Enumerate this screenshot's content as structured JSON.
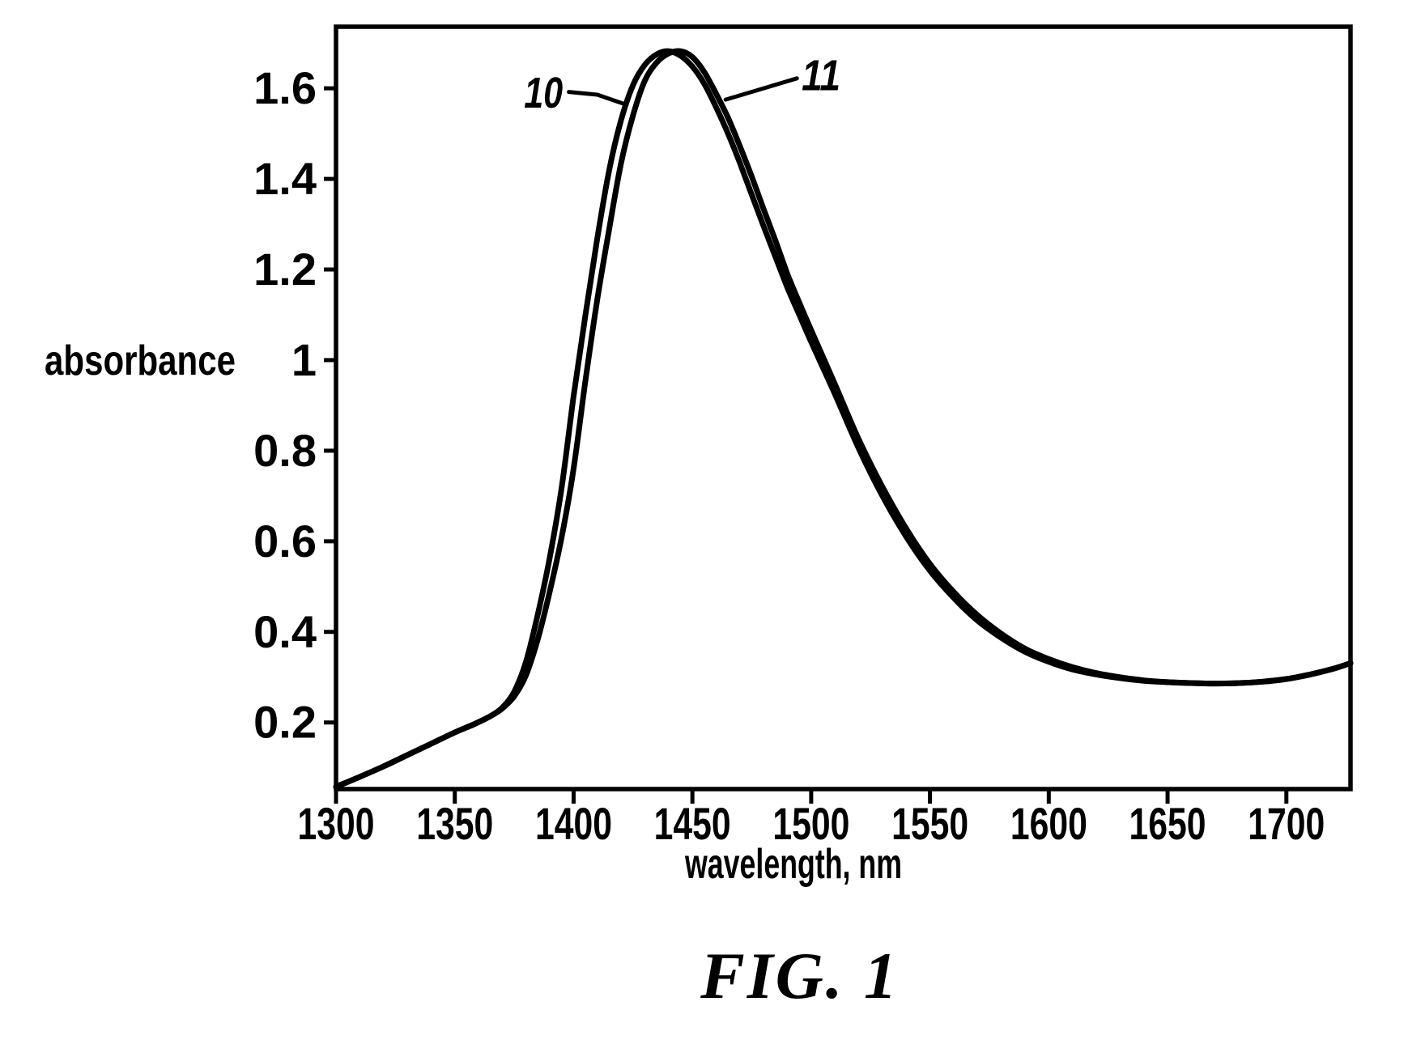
{
  "figure": {
    "caption": "FIG. 1",
    "background_color": "#ffffff",
    "ink_color": "#000000"
  },
  "chart_data": {
    "type": "line",
    "title": "",
    "xlabel": "wavelength, nm",
    "ylabel": "absorbance",
    "xlim": [
      1300,
      1727
    ],
    "ylim": [
      0.053,
      1.736
    ],
    "grid": false,
    "legend_position": "none - curves annotated inline with leader lines",
    "x_ticks": [
      1300,
      1350,
      1400,
      1450,
      1500,
      1550,
      1600,
      1650,
      1700
    ],
    "x_tick_labels": [
      "1300",
      "1350",
      "1400",
      "1450",
      "1500",
      "1550",
      "1600",
      "1650",
      "1700"
    ],
    "y_ticks": [
      0.2,
      0.4,
      0.6,
      0.8,
      1,
      1.2,
      1.4,
      1.6
    ],
    "y_tick_labels": [
      "0.2",
      "0.4",
      "0.6",
      "0.8",
      "1",
      "1.2",
      "1.4",
      "1.6"
    ],
    "series": [
      {
        "name": "10",
        "peak_nm": 1441,
        "peak_absorbance": 1.68,
        "points": [
          [
            1300,
            0.058
          ],
          [
            1310,
            0.08
          ],
          [
            1320,
            0.103
          ],
          [
            1330,
            0.128
          ],
          [
            1340,
            0.153
          ],
          [
            1350,
            0.178
          ],
          [
            1358,
            0.196
          ],
          [
            1365,
            0.214
          ],
          [
            1370,
            0.233
          ],
          [
            1375,
            0.268
          ],
          [
            1380,
            0.335
          ],
          [
            1385,
            0.44
          ],
          [
            1390,
            0.565
          ],
          [
            1395,
            0.72
          ],
          [
            1400,
            0.92
          ],
          [
            1405,
            1.1
          ],
          [
            1410,
            1.27
          ],
          [
            1415,
            1.42
          ],
          [
            1420,
            1.53
          ],
          [
            1425,
            1.607
          ],
          [
            1430,
            1.652
          ],
          [
            1435,
            1.675
          ],
          [
            1440,
            1.682
          ],
          [
            1445,
            1.672
          ],
          [
            1450,
            1.648
          ],
          [
            1455,
            1.61
          ],
          [
            1460,
            1.558
          ],
          [
            1465,
            1.5
          ],
          [
            1470,
            1.435
          ],
          [
            1475,
            1.365
          ],
          [
            1480,
            1.295
          ],
          [
            1485,
            1.227
          ],
          [
            1490,
            1.16
          ],
          [
            1495,
            1.1
          ],
          [
            1500,
            1.04
          ],
          [
            1510,
            0.925
          ],
          [
            1520,
            0.805
          ],
          [
            1530,
            0.7
          ],
          [
            1540,
            0.61
          ],
          [
            1550,
            0.535
          ],
          [
            1560,
            0.475
          ],
          [
            1570,
            0.425
          ],
          [
            1580,
            0.387
          ],
          [
            1590,
            0.356
          ],
          [
            1600,
            0.334
          ],
          [
            1610,
            0.317
          ],
          [
            1620,
            0.306
          ],
          [
            1630,
            0.298
          ],
          [
            1640,
            0.292
          ],
          [
            1650,
            0.289
          ],
          [
            1660,
            0.287
          ],
          [
            1670,
            0.286
          ],
          [
            1680,
            0.287
          ],
          [
            1690,
            0.29
          ],
          [
            1700,
            0.296
          ],
          [
            1710,
            0.306
          ],
          [
            1720,
            0.319
          ],
          [
            1727,
            0.331
          ]
        ]
      },
      {
        "name": "11",
        "peak_nm": 1446,
        "peak_absorbance": 1.68,
        "points": [
          [
            1300,
            0.058
          ],
          [
            1310,
            0.08
          ],
          [
            1320,
            0.103
          ],
          [
            1330,
            0.128
          ],
          [
            1340,
            0.153
          ],
          [
            1350,
            0.178
          ],
          [
            1358,
            0.196
          ],
          [
            1365,
            0.214
          ],
          [
            1370,
            0.231
          ],
          [
            1375,
            0.258
          ],
          [
            1380,
            0.305
          ],
          [
            1385,
            0.385
          ],
          [
            1390,
            0.49
          ],
          [
            1395,
            0.61
          ],
          [
            1400,
            0.76
          ],
          [
            1405,
            0.955
          ],
          [
            1410,
            1.135
          ],
          [
            1415,
            1.29
          ],
          [
            1420,
            1.435
          ],
          [
            1425,
            1.54
          ],
          [
            1430,
            1.617
          ],
          [
            1435,
            1.657
          ],
          [
            1440,
            1.677
          ],
          [
            1445,
            1.682
          ],
          [
            1450,
            1.669
          ],
          [
            1455,
            1.636
          ],
          [
            1460,
            1.588
          ],
          [
            1465,
            1.535
          ],
          [
            1470,
            1.472
          ],
          [
            1475,
            1.405
          ],
          [
            1480,
            1.333
          ],
          [
            1485,
            1.263
          ],
          [
            1490,
            1.19
          ],
          [
            1495,
            1.127
          ],
          [
            1500,
            1.066
          ],
          [
            1510,
            0.947
          ],
          [
            1520,
            0.825
          ],
          [
            1530,
            0.72
          ],
          [
            1540,
            0.628
          ],
          [
            1550,
            0.55
          ],
          [
            1560,
            0.488
          ],
          [
            1570,
            0.437
          ],
          [
            1580,
            0.396
          ],
          [
            1590,
            0.363
          ],
          [
            1600,
            0.34
          ],
          [
            1610,
            0.322
          ],
          [
            1620,
            0.309
          ],
          [
            1630,
            0.3
          ],
          [
            1640,
            0.293
          ],
          [
            1650,
            0.289
          ],
          [
            1660,
            0.287
          ],
          [
            1670,
            0.286
          ],
          [
            1680,
            0.287
          ],
          [
            1690,
            0.29
          ],
          [
            1700,
            0.296
          ],
          [
            1710,
            0.306
          ],
          [
            1720,
            0.319
          ],
          [
            1727,
            0.331
          ]
        ]
      }
    ],
    "annotations": [
      {
        "text": "10",
        "anchor": "end",
        "text_pos": [
          1395.5,
          1.557
        ],
        "leader": [
          [
            1398,
            1.592
          ],
          [
            1410,
            1.586
          ],
          [
            1421,
            1.566
          ]
        ]
      },
      {
        "text": "11",
        "anchor": "start",
        "text_pos": [
          1496,
          1.596
        ],
        "leader": [
          [
            1494,
            1.622
          ],
          [
            1480,
            1.6
          ],
          [
            1464,
            1.575
          ]
        ]
      }
    ]
  }
}
